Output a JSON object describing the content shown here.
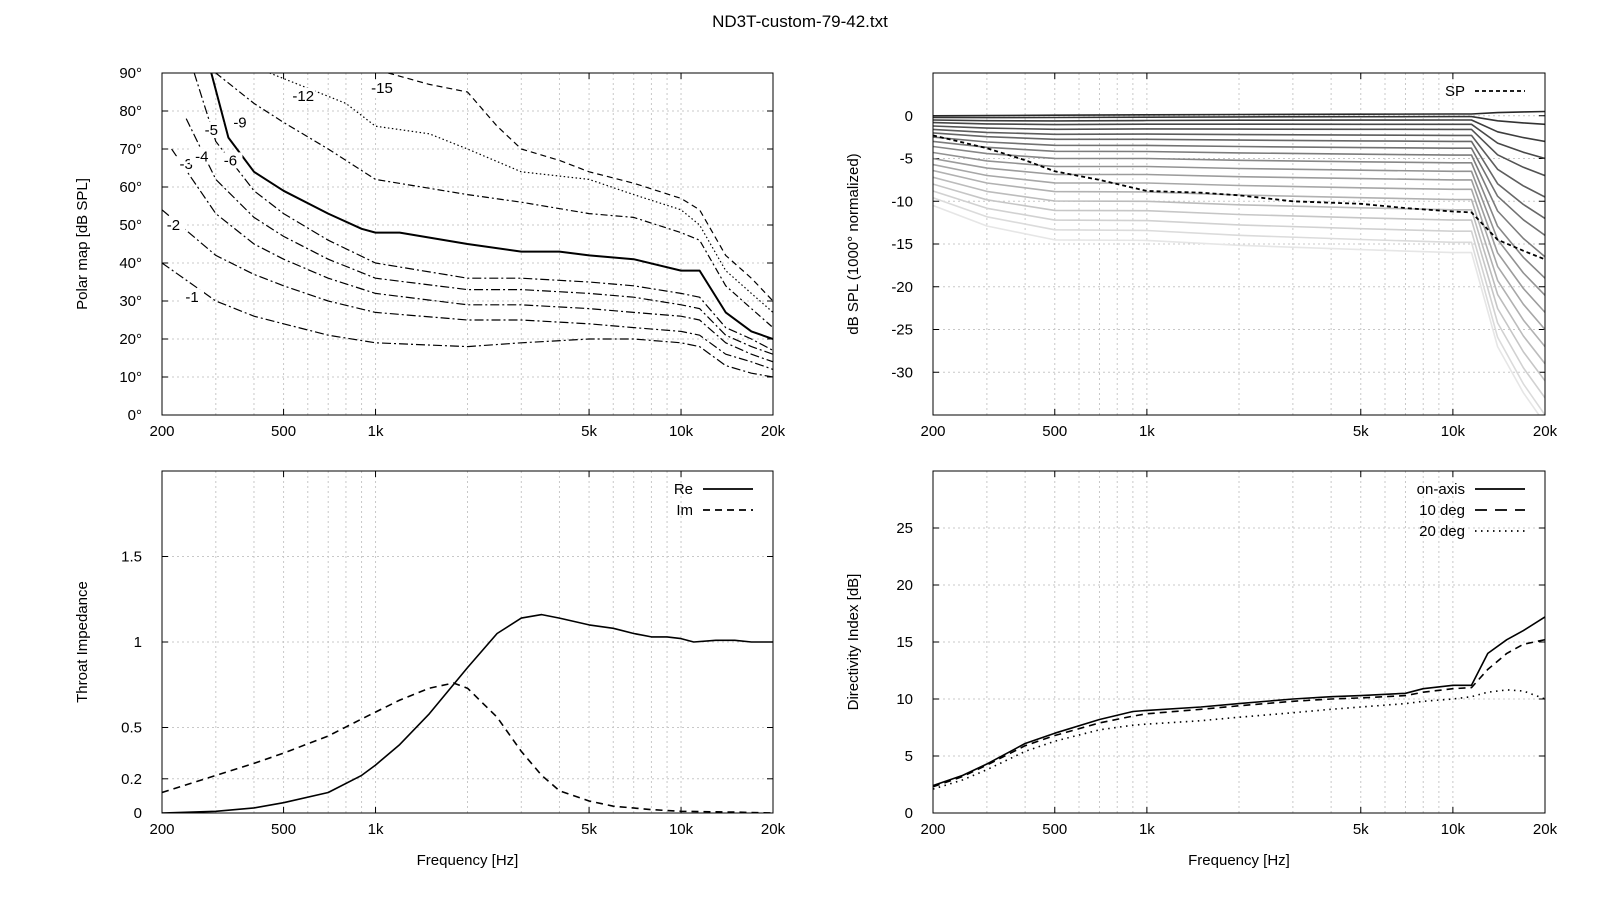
{
  "figure": {
    "title": "ND3T-custom-79-42.txt"
  },
  "chart_data": [
    {
      "id": "polar",
      "type": "contour",
      "xlabel": "",
      "ylabel": "Polar map [dB SPL]",
      "xscale": "log",
      "xlim": [
        200,
        20000
      ],
      "ylim": [
        0,
        90
      ],
      "xticks": [
        200,
        500,
        1000,
        5000,
        10000,
        20000
      ],
      "xticklabels": [
        "200",
        "500",
        "1k",
        "5k",
        "10k",
        "20k"
      ],
      "yticks": [
        0,
        10,
        20,
        30,
        40,
        50,
        60,
        70,
        80,
        90
      ],
      "yticklabels": [
        "0°",
        "10°",
        "20°",
        "30°",
        "40°",
        "50°",
        "60°",
        "70°",
        "80°",
        "90°"
      ],
      "grid": true,
      "contours": [
        {
          "level": "-1",
          "x": [
            200,
            300,
            400,
            500,
            700,
            1000,
            2000,
            3000,
            5000,
            7000,
            10000,
            11500,
            14000,
            17000,
            20000
          ],
          "y": [
            40,
            30,
            26,
            24,
            21,
            19,
            18,
            19,
            20,
            20,
            19,
            18,
            13,
            11,
            10
          ]
        },
        {
          "level": "-2",
          "x": [
            200,
            300,
            400,
            500,
            700,
            1000,
            2000,
            3000,
            5000,
            7000,
            10000,
            11500,
            14000,
            17000,
            20000
          ],
          "y": [
            54,
            42,
            37,
            34,
            30,
            27,
            25,
            25,
            24,
            23,
            22,
            21,
            16,
            14,
            12
          ]
        },
        {
          "level": "-3",
          "x": [
            215,
            300,
            400,
            500,
            700,
            1000,
            2000,
            3000,
            5000,
            7000,
            10000,
            11500,
            14000,
            17000,
            20000
          ],
          "y": [
            70,
            53,
            45,
            41,
            36,
            32,
            29,
            29,
            28,
            27,
            26,
            25,
            19,
            16,
            14
          ]
        },
        {
          "level": "-4",
          "x": [
            240,
            300,
            400,
            500,
            700,
            1000,
            2000,
            3000,
            5000,
            7000,
            10000,
            11500,
            14000,
            17000,
            20000
          ],
          "y": [
            78,
            62,
            52,
            47,
            41,
            36,
            33,
            33,
            32,
            31,
            29,
            28,
            21,
            18,
            16
          ]
        },
        {
          "level": "-5",
          "x": [
            255,
            300,
            400,
            500,
            700,
            1000,
            2000,
            3000,
            5000,
            7000,
            10000,
            11500,
            14000,
            17000,
            20000
          ],
          "y": [
            90,
            72,
            59,
            53,
            46,
            40,
            36,
            36,
            35,
            34,
            32,
            31,
            23,
            20,
            17
          ]
        },
        {
          "level": "-6",
          "x": [
            290,
            330,
            400,
            500,
            700,
            900,
            1000,
            1200,
            2000,
            3000,
            4000,
            5000,
            7000,
            10000,
            11500,
            14000,
            17000,
            20000
          ],
          "y": [
            90,
            73,
            64,
            59,
            53,
            49,
            48,
            48,
            45,
            43,
            43,
            42,
            41,
            38,
            38,
            27,
            22,
            20
          ]
        },
        {
          "level": "-9",
          "x": [
            300,
            400,
            500,
            700,
            1000,
            2000,
            3000,
            5000,
            7000,
            10000,
            11500,
            14000,
            17000,
            20000
          ],
          "y": [
            90,
            82,
            77,
            70,
            62,
            58,
            56,
            53,
            52,
            48,
            46,
            34,
            28,
            23
          ]
        },
        {
          "level": "-12",
          "x": [
            450,
            600,
            800,
            1000,
            1500,
            2000,
            3000,
            5000,
            7000,
            10000,
            11500,
            14000,
            17000,
            20000
          ],
          "y": [
            90,
            86,
            82,
            76,
            74,
            70,
            64,
            62,
            58,
            54,
            50,
            38,
            32,
            27
          ]
        },
        {
          "level": "-15",
          "x": [
            1100,
            1500,
            2000,
            2500,
            3000,
            4000,
            5000,
            7000,
            10000,
            11500,
            14000,
            17000,
            20000
          ],
          "y": [
            90,
            87,
            85,
            76,
            70,
            67,
            64,
            61,
            57,
            54,
            42,
            36,
            30
          ]
        }
      ]
    },
    {
      "id": "spl",
      "type": "line",
      "xlabel": "",
      "ylabel": "dB SPL (1000° normalized)",
      "xscale": "log",
      "xlim": [
        200,
        20000
      ],
      "ylim": [
        -35,
        5
      ],
      "xticks": [
        200,
        500,
        1000,
        5000,
        10000,
        20000
      ],
      "xticklabels": [
        "200",
        "500",
        "1k",
        "5k",
        "10k",
        "20k"
      ],
      "yticks": [
        0,
        -5,
        -10,
        -15,
        -20,
        -25,
        -30
      ],
      "yticklabels": [
        "0",
        "-5",
        "-10",
        "-15",
        "-20",
        "-25",
        "-30"
      ],
      "grid": true,
      "legend": {
        "position": "top-right",
        "entries": [
          {
            "label": "SP",
            "style": "dashed"
          }
        ]
      },
      "family": {
        "count": 19,
        "description_levels": {
          "low_end_dB_at_200Hz": [
            0,
            -0.2,
            -0.5,
            -0.8,
            -1.2,
            -1.6,
            -2.0,
            -2.5,
            -3.0,
            -3.6,
            -4.3,
            -5.0
          ]
        },
        "knee_hz": 11500,
        "bottom_at_20k": [
          0.5,
          -1,
          -3,
          -5,
          -7,
          -9.5,
          -12,
          -14,
          -16.5,
          -19,
          -21,
          -23,
          -25,
          -27,
          -29,
          -31,
          -33,
          -35,
          -36
        ]
      },
      "series": [
        {
          "name": "SP",
          "x": [
            200,
            300,
            400,
            500,
            700,
            1000,
            1500,
            2000,
            3000,
            5000,
            7000,
            10000,
            11500,
            14000,
            17000,
            20000
          ],
          "y": [
            -2.3,
            -3.8,
            -5.2,
            -6.5,
            -7.5,
            -8.8,
            -9.0,
            -9.3,
            -10.0,
            -10.3,
            -10.8,
            -11.2,
            -11.3,
            -14.5,
            -15.8,
            -16.8
          ]
        }
      ]
    },
    {
      "id": "impedance",
      "type": "line",
      "xlabel": "Frequency [Hz]",
      "ylabel": "Throat Impedance",
      "xscale": "log",
      "xlim": [
        200,
        20000
      ],
      "ylim": [
        0,
        2
      ],
      "xticks": [
        200,
        500,
        1000,
        5000,
        10000,
        20000
      ],
      "xticklabels": [
        "200",
        "500",
        "1k",
        "5k",
        "10k",
        "20k"
      ],
      "yticks": [
        0,
        0.2,
        0.5,
        1,
        1.5
      ],
      "yticklabels": [
        "0",
        "0.2",
        "0.5",
        "1",
        "1.5"
      ],
      "grid": true,
      "legend": {
        "position": "top-right"
      },
      "series": [
        {
          "name": "Re",
          "style": "solid",
          "x": [
            200,
            300,
            400,
            500,
            700,
            900,
            1000,
            1200,
            1500,
            2000,
            2500,
            3000,
            3500,
            4000,
            5000,
            6000,
            7000,
            8000,
            9000,
            10000,
            11000,
            13000,
            15000,
            17000,
            20000
          ],
          "y": [
            0.0,
            0.01,
            0.03,
            0.06,
            0.12,
            0.22,
            0.28,
            0.4,
            0.58,
            0.85,
            1.05,
            1.14,
            1.16,
            1.14,
            1.1,
            1.08,
            1.05,
            1.03,
            1.03,
            1.02,
            1.0,
            1.01,
            1.01,
            1.0,
            1.0
          ]
        },
        {
          "name": "Im",
          "style": "dashed",
          "x": [
            200,
            300,
            400,
            500,
            700,
            900,
            1000,
            1200,
            1500,
            1800,
            2000,
            2500,
            3000,
            3500,
            4000,
            5000,
            6000,
            8000,
            10000,
            15000,
            20000
          ],
          "y": [
            0.12,
            0.22,
            0.29,
            0.35,
            0.45,
            0.55,
            0.59,
            0.66,
            0.73,
            0.76,
            0.73,
            0.56,
            0.36,
            0.22,
            0.13,
            0.07,
            0.04,
            0.02,
            0.01,
            0.005,
            0.0
          ]
        }
      ]
    },
    {
      "id": "di",
      "type": "line",
      "xlabel": "Frequency [Hz]",
      "ylabel": "Directivity Index [dB]",
      "xscale": "log",
      "xlim": [
        200,
        20000
      ],
      "ylim": [
        0,
        30
      ],
      "xticks": [
        200,
        500,
        1000,
        5000,
        10000,
        20000
      ],
      "xticklabels": [
        "200",
        "500",
        "1k",
        "5k",
        "10k",
        "20k"
      ],
      "yticks": [
        0,
        5,
        10,
        15,
        20,
        25
      ],
      "yticklabels": [
        "0",
        "5",
        "10",
        "15",
        "20",
        "25"
      ],
      "grid": true,
      "legend": {
        "position": "top-right"
      },
      "series": [
        {
          "name": "on-axis",
          "style": "solid",
          "x": [
            200,
            250,
            300,
            400,
            500,
            700,
            900,
            1000,
            1500,
            2000,
            3000,
            4000,
            5000,
            7000,
            8000,
            10000,
            11500,
            13000,
            15000,
            17000,
            20000
          ],
          "y": [
            2.4,
            3.3,
            4.3,
            6.1,
            7.0,
            8.2,
            8.9,
            9.0,
            9.3,
            9.6,
            10.0,
            10.2,
            10.3,
            10.5,
            10.9,
            11.2,
            11.2,
            14.0,
            15.2,
            16.0,
            17.2
          ]
        },
        {
          "name": "10 deg",
          "style": "dashed",
          "x": [
            200,
            250,
            300,
            400,
            500,
            700,
            900,
            1000,
            1500,
            2000,
            3000,
            4000,
            5000,
            7000,
            8000,
            10000,
            11500,
            13000,
            15000,
            17000,
            20000
          ],
          "y": [
            2.3,
            3.2,
            4.2,
            5.9,
            6.8,
            7.9,
            8.5,
            8.7,
            9.1,
            9.4,
            9.8,
            10.0,
            10.1,
            10.3,
            10.6,
            10.9,
            11.0,
            12.6,
            14.0,
            14.8,
            15.2
          ]
        },
        {
          "name": "20 deg",
          "style": "dotted",
          "x": [
            200,
            250,
            300,
            400,
            500,
            700,
            900,
            1000,
            1500,
            2000,
            3000,
            4000,
            5000,
            7000,
            8000,
            10000,
            11500,
            13000,
            15000,
            17000,
            20000
          ],
          "y": [
            2.1,
            2.9,
            3.8,
            5.4,
            6.3,
            7.3,
            7.7,
            7.8,
            8.1,
            8.4,
            8.8,
            9.1,
            9.3,
            9.6,
            9.8,
            10.0,
            10.2,
            10.6,
            10.8,
            10.7,
            10.0
          ]
        }
      ]
    }
  ]
}
